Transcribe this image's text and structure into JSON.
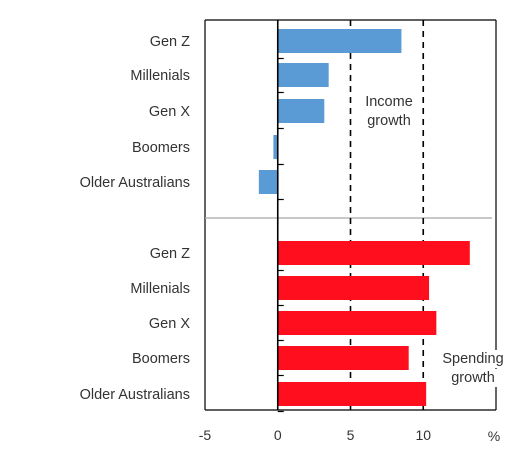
{
  "chart_data": {
    "type": "bar",
    "orientation": "horizontal",
    "x_axis": {
      "range": [
        -5,
        15
      ],
      "ticks": [
        -5,
        0,
        5,
        10
      ],
      "tick_labels": [
        "-5",
        "0",
        "5",
        "10"
      ],
      "unit": "%"
    },
    "reference_lines": [
      5,
      10
    ],
    "panels": [
      {
        "name": "income",
        "annotation": [
          "Income",
          "growth"
        ],
        "color": "#5B9BD5",
        "categories": [
          "Gen Z",
          "Millenials",
          "Gen X",
          "Boomers",
          "Older Australians"
        ],
        "values": [
          8.5,
          3.5,
          3.2,
          -0.3,
          -1.3
        ]
      },
      {
        "name": "spending",
        "annotation": [
          "Spending",
          "growth"
        ],
        "color": "#FF0F1E",
        "categories": [
          "Gen Z",
          "Millenials",
          "Gen X",
          "Boomers",
          "Older Australians"
        ],
        "values": [
          13.2,
          10.4,
          10.9,
          9.0,
          10.2
        ]
      }
    ],
    "grid": false,
    "legend": "none"
  }
}
